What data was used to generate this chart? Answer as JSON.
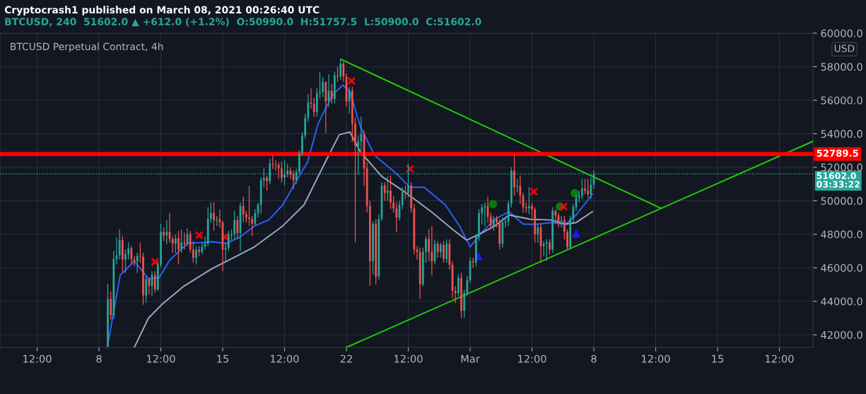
{
  "chart_data": {
    "type": "candlestick",
    "title": "BTCUSD Perpetual Contract, 4h",
    "subtitle": "Cryptocrash1 published on March 08, 2021 00:26:40 UTC",
    "annotations": [
      "BTCUSD, 240  51602.0 ▲ +612.0 (+1.2%)  O:50990.0  H:51757.5  L:50900.0  C:51602.0"
    ],
    "ylabel": "USD",
    "xlim": [
      "2021-02-02T09:36",
      "2021-03-20T09:36"
    ],
    "ylim": [
      41250,
      60000
    ],
    "xticks": [
      {
        "value": "2021-02-04T12:00",
        "label": "12:00"
      },
      {
        "value": "2021-02-08",
        "label": "8"
      },
      {
        "value": "2021-02-11T12:00",
        "label": "12:00"
      },
      {
        "value": "2021-02-15",
        "label": "15"
      },
      {
        "value": "2021-02-18T12:00",
        "label": "12:00"
      },
      {
        "value": "2021-02-22",
        "label": "22"
      },
      {
        "value": "2021-02-25T12:00",
        "label": "12:00"
      },
      {
        "value": "2021-03-01",
        "label": "Mar"
      },
      {
        "value": "2021-03-04T12:00",
        "label": "12:00"
      },
      {
        "value": "2021-03-08",
        "label": "8"
      },
      {
        "value": "2021-03-11T12:00",
        "label": "12:00"
      },
      {
        "value": "2021-03-15",
        "label": "15"
      },
      {
        "value": "2021-03-18T12:00",
        "label": "12:00"
      }
    ],
    "yticks": [
      {
        "value": 42000,
        "label": "42000.0"
      },
      {
        "value": 44000,
        "label": "44000.0"
      },
      {
        "value": 46000,
        "label": "46000.0"
      },
      {
        "value": 48000,
        "label": "48000.0"
      },
      {
        "value": 50000,
        "label": "50000.0"
      },
      {
        "value": 52000,
        "label": "52000.0"
      },
      {
        "value": 54000,
        "label": "54000.0"
      },
      {
        "value": 56000,
        "label": "56000.0"
      },
      {
        "value": 58000,
        "label": "58000.0"
      },
      {
        "value": 60000,
        "label": "60000.0"
      }
    ],
    "grid": true,
    "x": [
      "2021-02-08T12:00",
      "2021-02-08T16:00",
      "2021-02-08T20:00",
      "2021-02-09T00:00",
      "2021-02-09T04:00",
      "2021-02-09T08:00",
      "2021-02-09T12:00",
      "2021-02-09T16:00",
      "2021-02-09T20:00",
      "2021-02-10T00:00",
      "2021-02-10T04:00",
      "2021-02-10T08:00",
      "2021-02-10T12:00",
      "2021-02-10T16:00",
      "2021-02-10T20:00",
      "2021-02-11T00:00",
      "2021-02-11T04:00",
      "2021-02-11T08:00",
      "2021-02-11T12:00",
      "2021-02-11T16:00",
      "2021-02-11T20:00",
      "2021-02-12T00:00",
      "2021-02-12T04:00",
      "2021-02-12T08:00",
      "2021-02-12T12:00",
      "2021-02-12T16:00",
      "2021-02-12T20:00",
      "2021-02-13T00:00",
      "2021-02-13T04:00",
      "2021-02-13T08:00",
      "2021-02-13T12:00",
      "2021-02-13T16:00",
      "2021-02-13T20:00",
      "2021-02-14T00:00",
      "2021-02-14T04:00",
      "2021-02-14T08:00",
      "2021-02-14T12:00",
      "2021-02-14T16:00",
      "2021-02-14T20:00",
      "2021-02-15T00:00",
      "2021-02-15T04:00",
      "2021-02-15T08:00",
      "2021-02-15T12:00",
      "2021-02-15T16:00",
      "2021-02-15T20:00",
      "2021-02-16T00:00",
      "2021-02-16T04:00",
      "2021-02-16T08:00",
      "2021-02-16T12:00",
      "2021-02-16T16:00",
      "2021-02-16T20:00",
      "2021-02-17T00:00",
      "2021-02-17T04:00",
      "2021-02-17T08:00",
      "2021-02-17T12:00",
      "2021-02-17T16:00",
      "2021-02-17T20:00",
      "2021-02-18T00:00",
      "2021-02-18T04:00",
      "2021-02-18T08:00",
      "2021-02-18T12:00",
      "2021-02-18T16:00",
      "2021-02-18T20:00",
      "2021-02-19T00:00",
      "2021-02-19T04:00",
      "2021-02-19T08:00",
      "2021-02-19T12:00",
      "2021-02-19T16:00",
      "2021-02-19T20:00",
      "2021-02-20T00:00",
      "2021-02-20T04:00",
      "2021-02-20T08:00",
      "2021-02-20T12:00",
      "2021-02-20T16:00",
      "2021-02-20T20:00",
      "2021-02-21T00:00",
      "2021-02-21T04:00",
      "2021-02-21T08:00",
      "2021-02-21T12:00",
      "2021-02-21T16:00",
      "2021-02-21T20:00",
      "2021-02-22T00:00",
      "2021-02-22T04:00",
      "2021-02-22T08:00",
      "2021-02-22T12:00",
      "2021-02-22T16:00",
      "2021-02-22T20:00",
      "2021-02-23T00:00",
      "2021-02-23T04:00",
      "2021-02-23T08:00",
      "2021-02-23T12:00",
      "2021-02-23T16:00",
      "2021-02-23T20:00",
      "2021-02-24T00:00",
      "2021-02-24T04:00",
      "2021-02-24T08:00",
      "2021-02-24T12:00",
      "2021-02-24T16:00",
      "2021-02-24T20:00",
      "2021-02-25T00:00",
      "2021-02-25T04:00",
      "2021-02-25T08:00",
      "2021-02-25T12:00",
      "2021-02-25T16:00",
      "2021-02-25T20:00",
      "2021-02-26T00:00",
      "2021-02-26T04:00",
      "2021-02-26T08:00",
      "2021-02-26T12:00",
      "2021-02-26T16:00",
      "2021-02-26T20:00",
      "2021-02-27T00:00",
      "2021-02-27T04:00",
      "2021-02-27T08:00",
      "2021-02-27T12:00",
      "2021-02-27T16:00",
      "2021-02-27T20:00",
      "2021-02-28T00:00",
      "2021-02-28T04:00",
      "2021-02-28T08:00",
      "2021-02-28T12:00",
      "2021-02-28T16:00",
      "2021-02-28T20:00",
      "2021-03-01T00:00",
      "2021-03-01T04:00",
      "2021-03-01T08:00",
      "2021-03-01T12:00",
      "2021-03-01T16:00",
      "2021-03-01T20:00",
      "2021-03-02T00:00",
      "2021-03-02T04:00",
      "2021-03-02T08:00",
      "2021-03-02T12:00",
      "2021-03-02T16:00",
      "2021-03-02T20:00",
      "2021-03-03T00:00",
      "2021-03-03T04:00",
      "2021-03-03T08:00",
      "2021-03-03T12:00",
      "2021-03-03T16:00",
      "2021-03-03T20:00",
      "2021-03-04T00:00",
      "2021-03-04T04:00",
      "2021-03-04T08:00",
      "2021-03-04T12:00",
      "2021-03-04T16:00",
      "2021-03-04T20:00",
      "2021-03-05T00:00",
      "2021-03-05T04:00",
      "2021-03-05T08:00",
      "2021-03-05T12:00",
      "2021-03-05T16:00",
      "2021-03-05T20:00",
      "2021-03-06T00:00",
      "2021-03-06T04:00",
      "2021-03-06T08:00",
      "2021-03-06T12:00",
      "2021-03-06T16:00",
      "2021-03-06T20:00",
      "2021-03-07T00:00",
      "2021-03-07T04:00",
      "2021-03-07T08:00",
      "2021-03-07T12:00",
      "2021-03-07T16:00",
      "2021-03-07T20:00",
      "2021-03-08T00:00"
    ],
    "ohlc": [
      [
        41300,
        45053,
        41300,
        44141
      ],
      [
        44141,
        44600,
        42900,
        43158
      ],
      [
        43158,
        47019,
        42950,
        46528
      ],
      [
        46528,
        47791,
        46200,
        46738
      ],
      [
        46738,
        48283,
        46500,
        47651
      ],
      [
        47651,
        47900,
        45700,
        46500
      ],
      [
        46500,
        47100,
        45700,
        46808
      ],
      [
        46808,
        47510,
        46500,
        47159
      ],
      [
        47159,
        47300,
        46200,
        46500
      ],
      [
        46500,
        46700,
        46100,
        46387
      ],
      [
        46387,
        46900,
        45700,
        46710
      ],
      [
        46710,
        47510,
        46300,
        46668
      ],
      [
        46668,
        46900,
        43800,
        44351
      ],
      [
        44351,
        45500,
        43900,
        45334
      ],
      [
        45334,
        45400,
        44400,
        44913
      ],
      [
        44913,
        45800,
        44300,
        45573
      ],
      [
        45573,
        45800,
        44500,
        44703
      ],
      [
        44703,
        46400,
        44600,
        46177
      ],
      [
        46177,
        48634,
        46000,
        48142
      ],
      [
        48142,
        48400,
        47600,
        47932
      ],
      [
        47932,
        48844,
        47400,
        48142
      ],
      [
        48142,
        49265,
        47500,
        47721
      ],
      [
        47721,
        47900,
        46900,
        47440
      ],
      [
        47440,
        48000,
        46900,
        47763
      ],
      [
        47763,
        48200,
        46200,
        47090
      ],
      [
        47090,
        48283,
        46900,
        47511
      ],
      [
        47511,
        48100,
        47100,
        47440
      ],
      [
        47440,
        48353,
        47300,
        48002
      ],
      [
        48002,
        48200,
        46900,
        47090
      ],
      [
        47090,
        47600,
        46300,
        46598
      ],
      [
        46598,
        47300,
        46200,
        47090
      ],
      [
        47090,
        47300,
        46700,
        46949
      ],
      [
        46949,
        47500,
        46800,
        47258
      ],
      [
        47258,
        47861,
        47100,
        47440
      ],
      [
        47440,
        49616,
        47300,
        48914
      ],
      [
        48914,
        49900,
        48700,
        49265
      ],
      [
        49265,
        49897,
        48200,
        48844
      ],
      [
        48844,
        49100,
        48500,
        48900
      ],
      [
        48900,
        49476,
        48400,
        48704
      ],
      [
        48704,
        48800,
        45800,
        47090
      ],
      [
        47090,
        47500,
        46400,
        47202
      ],
      [
        47202,
        48200,
        47000,
        47932
      ],
      [
        47932,
        48300,
        47600,
        48002
      ],
      [
        48002,
        49400,
        47700,
        48844
      ],
      [
        48844,
        49100,
        47700,
        48072
      ],
      [
        48072,
        49900,
        47000,
        49687
      ],
      [
        49687,
        50248,
        48700,
        49195
      ],
      [
        49195,
        49400,
        48700,
        48985
      ],
      [
        48985,
        50880,
        48500,
        48914
      ],
      [
        48914,
        49100,
        47900,
        48634
      ],
      [
        48634,
        49500,
        48500,
        49265
      ],
      [
        49265,
        49900,
        49000,
        49757
      ],
      [
        49757,
        51400,
        49200,
        51231
      ],
      [
        51231,
        51933,
        50800,
        51372
      ],
      [
        51372,
        51500,
        50600,
        51161
      ],
      [
        51161,
        52494,
        51000,
        52214
      ],
      [
        52214,
        52705,
        51900,
        52172
      ],
      [
        52172,
        52400,
        51800,
        52144
      ],
      [
        52144,
        52300,
        51300,
        51933
      ],
      [
        51933,
        52354,
        51100,
        51372
      ],
      [
        51372,
        52424,
        50900,
        51582
      ],
      [
        51582,
        52200,
        51400,
        51793
      ],
      [
        51793,
        52000,
        51300,
        51582
      ],
      [
        51582,
        51800,
        50700,
        51231
      ],
      [
        51231,
        51900,
        51000,
        51723
      ],
      [
        51723,
        53000,
        51600,
        52846
      ],
      [
        52846,
        54100,
        52700,
        53899
      ],
      [
        53899,
        55200,
        53700,
        54952
      ],
      [
        54952,
        56356,
        54700,
        55864
      ],
      [
        55864,
        56707,
        55500,
        55794
      ],
      [
        55794,
        56145,
        55000,
        55303
      ],
      [
        55303,
        56700,
        55000,
        56426
      ],
      [
        56426,
        57675,
        56100,
        56496
      ],
      [
        56496,
        57400,
        56200,
        57086
      ],
      [
        57086,
        57128,
        54039,
        55934
      ],
      [
        55934,
        57549,
        55600,
        56566
      ],
      [
        56566,
        56988,
        55800,
        56075
      ],
      [
        56075,
        57700,
        55800,
        57479
      ],
      [
        57479,
        58012,
        57100,
        57409
      ],
      [
        57409,
        58462,
        57200,
        58181
      ],
      [
        58181,
        58300,
        57100,
        57409
      ],
      [
        57409,
        57600,
        55600,
        55934
      ],
      [
        55934,
        56800,
        55200,
        56566
      ],
      [
        56566,
        56800,
        53500,
        54600
      ],
      [
        54600,
        55000,
        47510,
        53267
      ],
      [
        53267,
        53900,
        51582,
        53548
      ],
      [
        53548,
        55022,
        53000,
        53969
      ],
      [
        53969,
        54200,
        50880,
        51933
      ],
      [
        51933,
        52300,
        49300,
        49687
      ],
      [
        49687,
        50000,
        44913,
        46387
      ],
      [
        46387,
        48800,
        45600,
        48634
      ],
      [
        48634,
        48900,
        45000,
        45475
      ],
      [
        45475,
        49200,
        45300,
        48914
      ],
      [
        48914,
        51100,
        48800,
        50908
      ],
      [
        50908,
        51100,
        50000,
        50459
      ],
      [
        50459,
        51442,
        50000,
        50600
      ],
      [
        50600,
        51500,
        49500,
        49897
      ],
      [
        49897,
        50300,
        49300,
        49546
      ],
      [
        49546,
        49900,
        48142,
        48985
      ],
      [
        48985,
        50000,
        48800,
        49757
      ],
      [
        49757,
        50800,
        49500,
        50529
      ],
      [
        50529,
        50900,
        50100,
        50459
      ],
      [
        50459,
        52214,
        50200,
        50908
      ],
      [
        50908,
        51100,
        49300,
        49546
      ],
      [
        49546,
        49800,
        46800,
        47090
      ],
      [
        47090,
        47300,
        46500,
        46949
      ],
      [
        46949,
        47200,
        44141,
        45011
      ],
      [
        45011,
        47200,
        44900,
        46949
      ],
      [
        46949,
        47900,
        46300,
        47721
      ],
      [
        47721,
        48300,
        46400,
        46949
      ],
      [
        46949,
        48493,
        45545,
        46387
      ],
      [
        46387,
        47700,
        46200,
        47440
      ],
      [
        47440,
        47600,
        46600,
        46949
      ],
      [
        46949,
        47500,
        46600,
        47370
      ],
      [
        47370,
        47600,
        46300,
        46528
      ],
      [
        46528,
        47700,
        46300,
        47440
      ],
      [
        47440,
        47700,
        45900,
        46177
      ],
      [
        46177,
        46400,
        44200,
        44632
      ],
      [
        44632,
        44900,
        43900,
        44492
      ],
      [
        44492,
        45600,
        44300,
        45405
      ],
      [
        45405,
        45700,
        43000,
        43439
      ],
      [
        43439,
        44700,
        43000,
        44492
      ],
      [
        44492,
        45500,
        44300,
        45264
      ],
      [
        45264,
        46600,
        45100,
        46387
      ],
      [
        46387,
        46600,
        46000,
        46317
      ],
      [
        46317,
        48000,
        46100,
        47861
      ],
      [
        47861,
        49500,
        47600,
        49265
      ],
      [
        49265,
        49800,
        48600,
        49616
      ],
      [
        49616,
        49897,
        48500,
        49687
      ],
      [
        49687,
        50248,
        48700,
        49055
      ],
      [
        49055,
        49300,
        48300,
        48493
      ],
      [
        48493,
        49100,
        48200,
        48914
      ],
      [
        48914,
        49100,
        48400,
        48704
      ],
      [
        48704,
        48900,
        47100,
        47440
      ],
      [
        47440,
        49000,
        47200,
        48704
      ],
      [
        48704,
        49000,
        48400,
        48774
      ],
      [
        48774,
        50000,
        48500,
        49827
      ],
      [
        49827,
        52000,
        49600,
        51793
      ],
      [
        51793,
        52705,
        50300,
        50810
      ],
      [
        50810,
        51300,
        50500,
        50880
      ],
      [
        50880,
        51500,
        49800,
        50318
      ],
      [
        50318,
        50500,
        49300,
        49616
      ],
      [
        49616,
        49900,
        49300,
        49546
      ],
      [
        49546,
        50810,
        49200,
        49687
      ],
      [
        49687,
        49900,
        49000,
        49476
      ],
      [
        49476,
        49600,
        47500,
        48002
      ],
      [
        48002,
        48600,
        47500,
        48423
      ],
      [
        48423,
        48600,
        46300,
        47300
      ],
      [
        47300,
        47600,
        46700,
        47440
      ],
      [
        47440,
        47700,
        46400,
        47511
      ],
      [
        47511,
        47700,
        46800,
        47090
      ],
      [
        47090,
        49600,
        46900,
        49406
      ],
      [
        49406,
        49500,
        48700,
        49125
      ],
      [
        49125,
        49300,
        48400,
        48774
      ],
      [
        48774,
        49100,
        48400,
        48844
      ],
      [
        48844,
        49100,
        47700,
        48142
      ],
      [
        48142,
        48300,
        47100,
        47230
      ],
      [
        47230,
        49100,
        47100,
        48914
      ],
      [
        48914,
        49800,
        48700,
        49616
      ],
      [
        49616,
        50400,
        49400,
        50178
      ],
      [
        50178,
        50600,
        49900,
        50300
      ],
      [
        50300,
        51301,
        50100,
        50740
      ],
      [
        50740,
        51300,
        50400,
        50600
      ],
      [
        50600,
        51300,
        50200,
        50389
      ],
      [
        50389,
        51400,
        50100,
        50950
      ],
      [
        50950,
        51793,
        50700,
        51602
      ]
    ],
    "series": [
      {
        "type": "line",
        "color": "#2962ff",
        "x": [
          "2021-02-08T11:30",
          "2021-02-09T04:48",
          "2021-02-10T00:00",
          "2021-02-10T19:12",
          "2021-02-11T09:36",
          "2021-02-12T00:00",
          "2021-02-13T00:00",
          "2021-02-14T09:36",
          "2021-02-15T04:48",
          "2021-02-16T00:00",
          "2021-02-16T19:12",
          "2021-02-17T14:24",
          "2021-02-18T09:36",
          "2021-02-19T04:48",
          "2021-02-19T19:12",
          "2021-02-20T09:36",
          "2021-02-21T04:48",
          "2021-02-21T19:12",
          "2021-02-22T04:48",
          "2021-02-22T19:12",
          "2021-02-23T14:24",
          "2021-02-24T19:12",
          "2021-02-25T14:24",
          "2021-02-26T09:36",
          "2021-02-27T14:24",
          "2021-02-28T09:36",
          "2021-03-01T00:00",
          "2021-03-01T14:24",
          "2021-03-02T09:36",
          "2021-03-03T04:48",
          "2021-03-04T00:00",
          "2021-03-04T19:12",
          "2021-03-05T14:24",
          "2021-03-06T09:36",
          "2021-03-07T00:00",
          "2021-03-07T22:00"
        ],
        "values": [
          41300,
          45550,
          46400,
          45350,
          45400,
          46450,
          47450,
          47550,
          47450,
          47850,
          48500,
          48850,
          49750,
          51250,
          52300,
          54600,
          56300,
          56900,
          56500,
          54400,
          52700,
          51650,
          50800,
          50800,
          49750,
          48500,
          47250,
          48050,
          48900,
          49350,
          48600,
          48600,
          48700,
          48600,
          49150,
          50400
        ]
      },
      {
        "type": "line",
        "color": "#9aa8bd",
        "x": [
          "2021-02-10T00:00",
          "2021-02-10T19:12",
          "2021-02-11T14:24",
          "2021-02-12T19:12",
          "2021-02-14T09:36",
          "2021-02-15T14:24",
          "2021-02-16T19:12",
          "2021-02-18T09:36",
          "2021-02-19T14:24",
          "2021-02-20T19:12",
          "2021-02-21T14:24",
          "2021-02-22T04:48",
          "2021-02-22T19:12",
          "2021-02-24T00:00",
          "2021-02-25T04:48",
          "2021-02-26T19:12",
          "2021-02-28T00:00",
          "2021-02-28T19:12",
          "2021-03-01T14:24",
          "2021-03-02T09:36",
          "2021-03-03T04:48",
          "2021-03-04T09:36",
          "2021-03-05T14:24",
          "2021-03-06T09:36",
          "2021-03-07T00:00",
          "2021-03-07T22:00"
        ],
        "values": [
          41250,
          43000,
          43850,
          44900,
          45950,
          46600,
          47250,
          48500,
          49750,
          52300,
          53950,
          54100,
          52900,
          51450,
          50600,
          49350,
          48300,
          47650,
          48050,
          48500,
          49150,
          48900,
          48850,
          48600,
          48700,
          49350
        ]
      },
      {
        "type": "line",
        "color": "#1fd100",
        "x": [
          "2021-02-21T16:20",
          "2021-03-11T19:12"
        ],
        "values": [
          58450,
          49550
        ]
      },
      {
        "type": "line",
        "color": "#1fd100",
        "x": [
          "2021-02-22T00:00",
          "2021-03-20T09:36"
        ],
        "values": [
          41250,
          53550
        ]
      },
      {
        "type": "scatter",
        "marker": "cross",
        "color": "#ff0000",
        "x": [
          "2021-02-11T04:00",
          "2021-02-13T16:00",
          "2021-02-15T03:00",
          "2021-02-22T07:00",
          "2021-02-25T14:24",
          "2021-03-04T14:24",
          "2021-03-06T07:00"
        ],
        "values": [
          46350,
          47950,
          47850,
          57150,
          51900,
          50550,
          49650
        ]
      },
      {
        "type": "scatter",
        "marker": "circle",
        "color": "#0a7a0a",
        "x": [
          "2021-03-02T07:00",
          "2021-03-06T02:00",
          "2021-03-06T22:00"
        ],
        "values": [
          49800,
          49650,
          50450
        ]
      },
      {
        "type": "scatter",
        "marker": "triangle",
        "color": "#1a1aff",
        "x": [
          "2021-03-01T11:30",
          "2021-03-07T00:00"
        ],
        "values": [
          46700,
          48050
        ]
      }
    ],
    "ref_lines": [
      {
        "axis": "y",
        "value": 52789.5,
        "label": "52789.5",
        "color": "#ff0000",
        "line_style": "solid"
      },
      {
        "axis": "y",
        "value": 51602,
        "label": "51602.0\n03:33:22",
        "color": "#26a69a",
        "line_style": "dotted"
      }
    ]
  }
}
